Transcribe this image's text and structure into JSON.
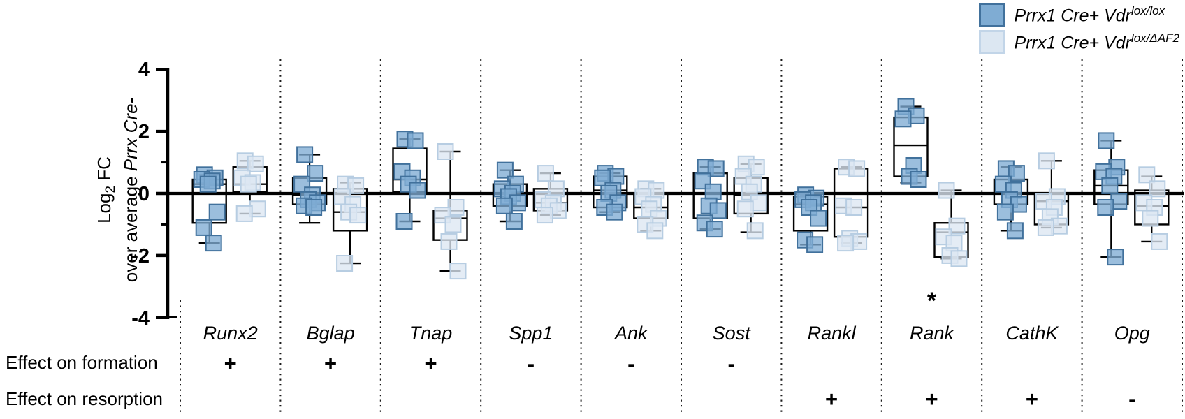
{
  "legend": {
    "items": [
      {
        "base": "Prrx1 Cre+ Vdr",
        "sup": "lox/lox",
        "fill": "#7FACD3",
        "stroke": "#41719C"
      },
      {
        "base": "Prrx1 Cre+ Vdr",
        "sup": "lox/ΔAF2",
        "fill": "#DCE7F2",
        "stroke": "#C2D5E8"
      }
    ]
  },
  "ylabel": {
    "p1": "Log",
    "sub": "2",
    "p2": " FC",
    "line2_plain": "over average ",
    "line2_italic": "Prrx Cre-"
  },
  "effect_rows": {
    "formation": "Effect on formation",
    "resorption": "Effect on resorption"
  },
  "chart_data": {
    "type": "boxplot-scatter",
    "title": "",
    "xlabel": "",
    "ylabel": "Log2 FC over average Prrx Cre-",
    "ylim": [
      -4,
      4
    ],
    "yticks": [
      4,
      2,
      0,
      -2,
      -4
    ],
    "yticks_minor": [
      1,
      -1
    ],
    "grid": "dotted column separators",
    "legend_position": "top-right",
    "series_names": [
      "Prrx1 Cre+ Vdr lox/lox",
      "Prrx1 Cre+ Vdr lox/dAF2"
    ],
    "colors": {
      "lox": {
        "fill": "#7FACD3",
        "stroke": "#41719C"
      },
      "daf2": {
        "fill": "#DCE7F2",
        "stroke": "#B7CDE2"
      }
    },
    "genes": [
      {
        "name": "Runx2",
        "formation": "+",
        "resorption": "",
        "sig": "",
        "lox": {
          "box": [
            -1.6,
            -0.95,
            0.3,
            0.45,
            0.6
          ],
          "points": [
            0.6,
            0.5,
            0.45,
            0.4,
            0.3,
            -0.6,
            -1.1,
            -1.6
          ]
        },
        "daf2": {
          "box": [
            -0.65,
            0.05,
            0.3,
            0.85,
            1.05
          ],
          "points": [
            1.05,
            0.95,
            0.5,
            0.35,
            0.3,
            -0.5,
            -0.65
          ]
        }
      },
      {
        "name": "Bglap",
        "formation": "+",
        "resorption": "",
        "sig": "",
        "lox": {
          "box": [
            -0.95,
            -0.35,
            -0.05,
            0.5,
            1.25
          ],
          "points": [
            1.25,
            0.65,
            0.3,
            -0.05,
            -0.2,
            -0.3,
            -0.4,
            -0.45
          ]
        },
        "daf2": {
          "box": [
            -2.25,
            -1.2,
            -0.6,
            0.15,
            0.35
          ],
          "points": [
            0.3,
            0.25,
            -0.1,
            -0.35,
            -0.6,
            -0.7,
            -2.25
          ]
        }
      },
      {
        "name": "Tnap",
        "formation": "+",
        "resorption": "",
        "sig": "",
        "lox": {
          "box": [
            -0.9,
            0.05,
            0.45,
            1.45,
            1.75
          ],
          "points": [
            1.75,
            1.7,
            0.7,
            0.5,
            0.3,
            0.1,
            -0.9
          ]
        },
        "daf2": {
          "box": [
            -2.5,
            -1.5,
            -0.8,
            -0.55,
            1.35
          ],
          "points": [
            1.35,
            -0.45,
            -0.7,
            -1.0,
            -1.55,
            -2.5
          ]
        }
      },
      {
        "name": "Spp1",
        "formation": "-",
        "resorption": "",
        "sig": "",
        "lox": {
          "box": [
            -0.9,
            -0.4,
            0.0,
            0.3,
            0.75
          ],
          "points": [
            0.75,
            0.3,
            0.15,
            0.0,
            -0.1,
            -0.3,
            -0.4,
            -0.9
          ]
        },
        "daf2": {
          "box": [
            -0.7,
            -0.55,
            -0.3,
            0.15,
            0.65
          ],
          "points": [
            0.65,
            0.15,
            -0.2,
            -0.3,
            -0.4,
            -0.55,
            -0.7
          ]
        }
      },
      {
        "name": "Ank",
        "formation": "-",
        "resorption": "",
        "sig": "",
        "lox": {
          "box": [
            -0.6,
            -0.45,
            0.1,
            0.55,
            0.65
          ],
          "points": [
            0.65,
            0.55,
            0.5,
            0.1,
            0.0,
            -0.3,
            -0.45,
            -0.6
          ]
        },
        "daf2": {
          "box": [
            -1.2,
            -0.8,
            -0.45,
            0.0,
            0.15
          ],
          "points": [
            0.15,
            0.1,
            -0.1,
            -0.35,
            -0.5,
            -0.8,
            -1.0,
            -1.2
          ]
        }
      },
      {
        "name": "Sost",
        "formation": "-",
        "resorption": "",
        "sig": "",
        "lox": {
          "box": [
            -1.15,
            -0.8,
            0.0,
            0.65,
            0.85
          ],
          "points": [
            0.85,
            0.8,
            0.4,
            0.05,
            -0.4,
            -0.55,
            -0.95,
            -1.15
          ]
        },
        "daf2": {
          "box": [
            -1.25,
            -0.65,
            -0.05,
            0.5,
            0.95
          ],
          "points": [
            0.95,
            0.85,
            0.55,
            0.3,
            0.05,
            -0.3,
            -0.5,
            -1.2
          ]
        }
      },
      {
        "name": "Rankl",
        "formation": "",
        "resorption": "+",
        "sig": "",
        "lox": {
          "box": [
            -1.65,
            -1.2,
            -0.35,
            -0.1,
            -0.05
          ],
          "points": [
            -0.05,
            -0.15,
            -0.2,
            -0.3,
            -0.45,
            -0.8,
            -1.5,
            -1.65
          ]
        },
        "daf2": {
          "box": [
            -1.6,
            -1.4,
            -0.45,
            0.8,
            0.85
          ],
          "points": [
            0.85,
            0.8,
            -0.4,
            -0.45,
            -1.45,
            -1.55,
            -1.6
          ]
        }
      },
      {
        "name": "Rank",
        "formation": "",
        "resorption": "+",
        "sig": "*",
        "lox": {
          "box": [
            0.35,
            0.55,
            1.55,
            2.45,
            2.8
          ],
          "points": [
            2.8,
            2.5,
            2.4,
            0.9,
            0.55,
            0.45
          ]
        },
        "daf2": {
          "box": [
            -2.1,
            -2.05,
            -1.25,
            -0.95,
            0.1
          ],
          "points": [
            0.1,
            -1.05,
            -1.4,
            -1.6,
            -2.0,
            -2.1
          ]
        }
      },
      {
        "name": "CathK",
        "formation": "",
        "resorption": "+",
        "sig": "",
        "lox": {
          "box": [
            -1.2,
            -0.35,
            0.0,
            0.45,
            0.85
          ],
          "points": [
            0.8,
            0.65,
            0.3,
            0.1,
            -0.2,
            -0.35,
            -0.6,
            -1.2
          ]
        },
        "daf2": {
          "box": [
            -1.1,
            -1.0,
            -0.25,
            0.0,
            1.05
          ],
          "points": [
            1.05,
            -0.1,
            -0.25,
            -0.45,
            -0.75,
            -1.05,
            -1.1
          ]
        }
      },
      {
        "name": "Opg",
        "formation": "",
        "resorption": "-",
        "sig": "",
        "lox": {
          "box": [
            -2.05,
            -0.35,
            0.25,
            0.75,
            1.7
          ],
          "points": [
            1.7,
            0.85,
            0.7,
            0.55,
            0.25,
            -0.25,
            -0.45,
            -2.05
          ]
        },
        "daf2": {
          "box": [
            -1.55,
            -1.0,
            -0.4,
            0.1,
            0.55
          ],
          "points": [
            0.6,
            0.15,
            -0.3,
            -0.45,
            -0.8,
            -1.55
          ]
        }
      }
    ]
  }
}
